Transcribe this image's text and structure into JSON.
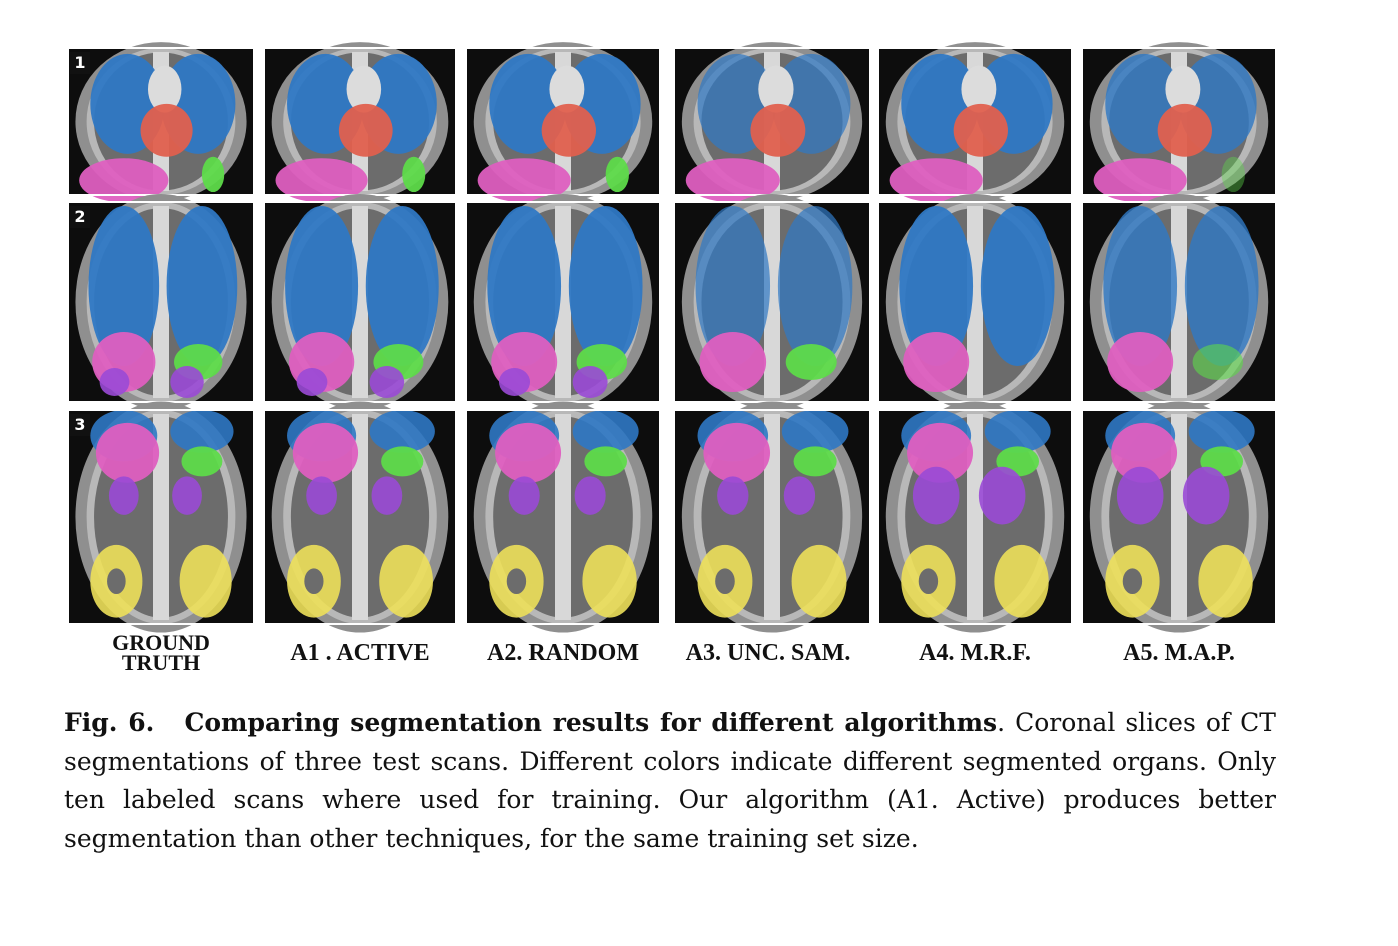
{
  "figure": {
    "row_labels": [
      "1",
      "2",
      "3"
    ],
    "column_labels": [
      "GROUND\nTRUTH",
      "A1 . ACTIVE",
      "A2. RANDOM",
      "A3. UNC. SAM.",
      "A4. M.R.F.",
      "A5. M.A.P."
    ],
    "organ_colors": {
      "lungs": "#2f78c4",
      "heart": "#e0604e",
      "liver": "#de5fc0",
      "spleen": "#5edb4a",
      "kidneys": "#9a4ad6",
      "pelvis": "#ede05a"
    }
  },
  "caption": {
    "fig_num": "Fig. 6.",
    "title": "Comparing segmentation results for different algorithms",
    "text": ". Coronal slices of CT segmentations of three test scans. Different colors indicate different segmented organs. Only ten labeled scans where used for training. Our algorithm (A1. Active) produces better segmentation than other techniques, for the same training set size."
  }
}
